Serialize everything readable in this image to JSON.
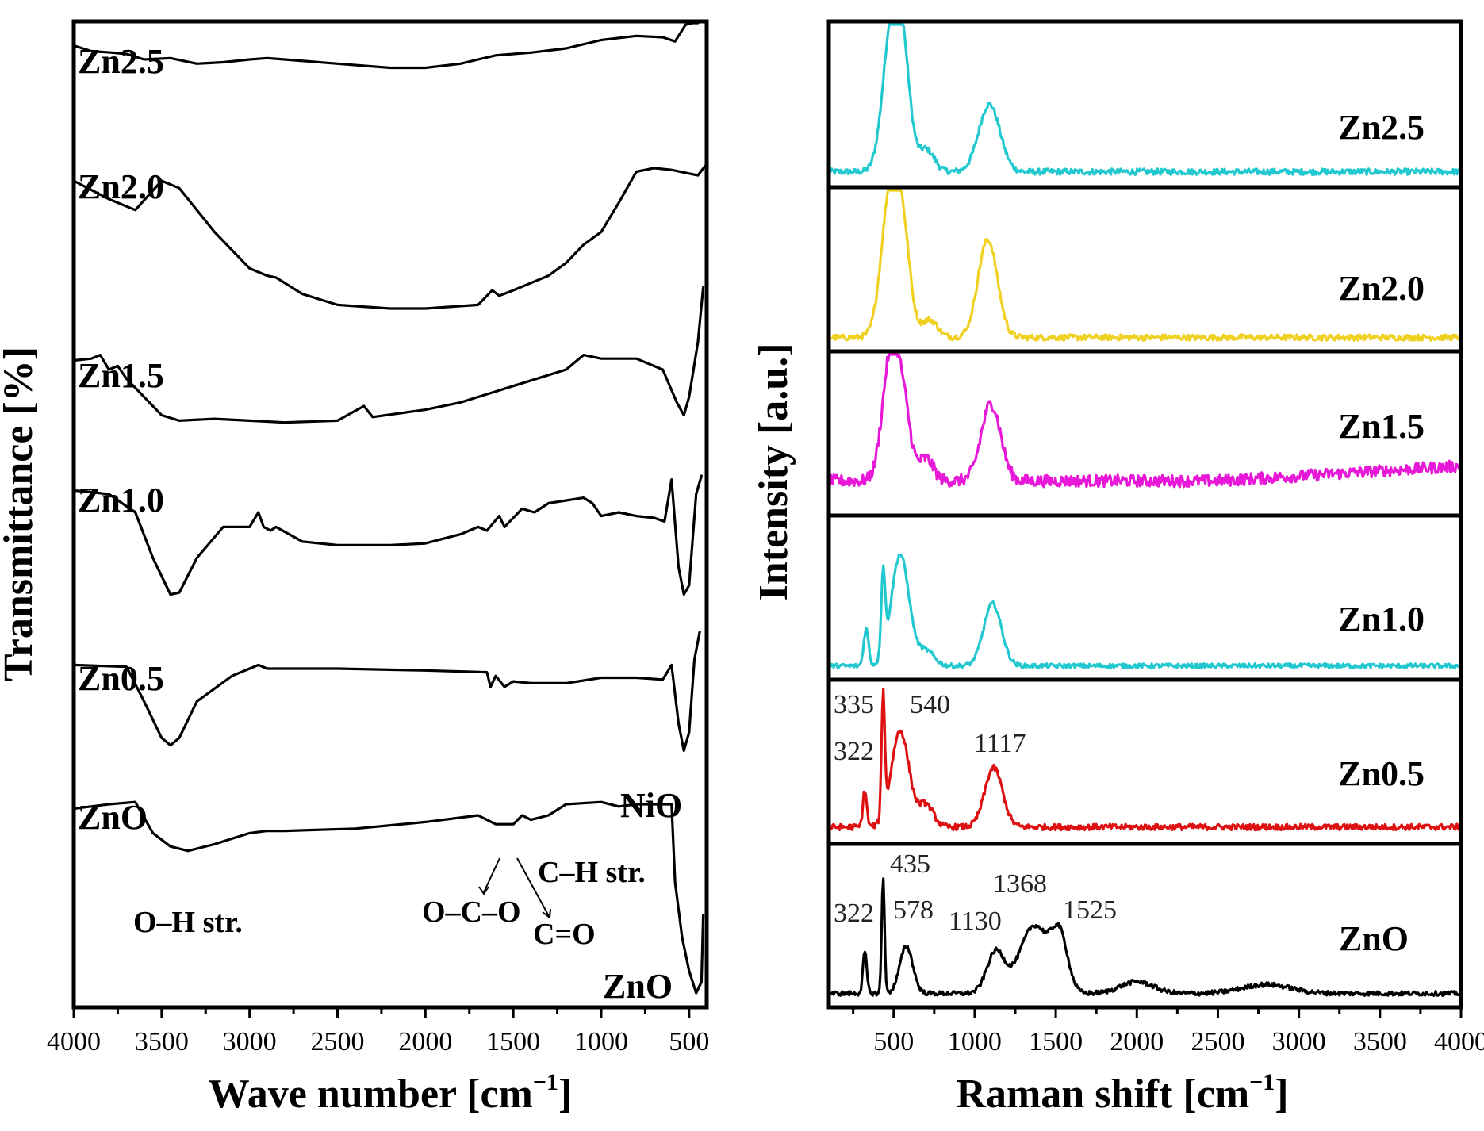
{
  "chart_data": [
    {
      "type": "line",
      "panel": "ftir",
      "xlabel": "Wave number [cm",
      "xlabel_sup": "−1",
      "xlabel_close": "]",
      "ylabel": "Transmittance [%]",
      "xlim": [
        4000,
        400
      ],
      "x_ticks": [
        4000,
        3500,
        3000,
        2500,
        2000,
        1500,
        1000,
        500
      ],
      "grid": false,
      "series": [
        {
          "name": "Zn2.5",
          "color": "#000000",
          "x": [
            4000,
            3900,
            3780,
            3700,
            3600,
            3450,
            3300,
            3150,
            3000,
            2900,
            2800,
            2500,
            2200,
            2000,
            1800,
            1700,
            1600,
            1500,
            1400,
            1200,
            1000,
            800,
            650,
            580,
            520,
            480,
            450
          ],
          "y": [
            0.9,
            0.86,
            0.85,
            0.84,
            0.8,
            0.81,
            0.77,
            0.78,
            0.8,
            0.81,
            0.8,
            0.77,
            0.74,
            0.74,
            0.77,
            0.8,
            0.83,
            0.84,
            0.85,
            0.88,
            0.94,
            0.97,
            0.96,
            0.93,
            1.05,
            1.25,
            1.45
          ]
        },
        {
          "name": "Zn2.0",
          "color": "#000000",
          "x": [
            4000,
            3800,
            3650,
            3500,
            3400,
            3200,
            3000,
            2900,
            2850,
            2700,
            2500,
            2200,
            2000,
            1700,
            1620,
            1580,
            1500,
            1400,
            1300,
            1200,
            1100,
            1000,
            900,
            800,
            700,
            600,
            500,
            450,
            410
          ],
          "y": [
            0.9,
            0.8,
            0.74,
            0.9,
            0.86,
            0.62,
            0.42,
            0.38,
            0.37,
            0.28,
            0.22,
            0.2,
            0.2,
            0.22,
            0.3,
            0.27,
            0.3,
            0.34,
            0.38,
            0.45,
            0.55,
            0.62,
            0.78,
            0.95,
            0.97,
            0.96,
            0.94,
            0.93,
            0.98
          ]
        },
        {
          "name": "Zn1.5",
          "color": "#000000",
          "x": [
            4000,
            3900,
            3850,
            3800,
            3750,
            3700,
            3600,
            3500,
            3400,
            3200,
            3000,
            2800,
            2500,
            2350,
            2300,
            2000,
            1800,
            1600,
            1400,
            1200,
            1100,
            1000,
            800,
            650,
            570,
            530,
            500,
            450,
            420
          ],
          "y": [
            0.85,
            0.86,
            0.88,
            0.8,
            0.82,
            0.75,
            0.65,
            0.55,
            0.52,
            0.53,
            0.52,
            0.51,
            0.52,
            0.6,
            0.54,
            0.58,
            0.62,
            0.68,
            0.74,
            0.8,
            0.88,
            0.86,
            0.86,
            0.8,
            0.62,
            0.55,
            0.65,
            0.95,
            1.25
          ]
        },
        {
          "name": "Zn1.0",
          "color": "#000000",
          "x": [
            4000,
            3800,
            3650,
            3550,
            3450,
            3400,
            3300,
            3150,
            3000,
            2950,
            2920,
            2880,
            2850,
            2700,
            2500,
            2200,
            2000,
            1800,
            1700,
            1650,
            1580,
            1550,
            1450,
            1380,
            1300,
            1100,
            1050,
            1000,
            900,
            800,
            700,
            640,
            600,
            560,
            530,
            500,
            460,
            430
          ],
          "y": [
            0.92,
            0.9,
            0.8,
            0.55,
            0.35,
            0.36,
            0.55,
            0.72,
            0.72,
            0.8,
            0.72,
            0.7,
            0.72,
            0.64,
            0.62,
            0.62,
            0.63,
            0.68,
            0.72,
            0.7,
            0.78,
            0.72,
            0.82,
            0.8,
            0.85,
            0.88,
            0.85,
            0.78,
            0.8,
            0.78,
            0.77,
            0.75,
            0.98,
            0.5,
            0.35,
            0.4,
            0.9,
            1.0
          ]
        },
        {
          "name": "Zn0.5",
          "color": "#000000",
          "x": [
            4000,
            3700,
            3600,
            3500,
            3450,
            3400,
            3300,
            3100,
            3000,
            2950,
            2900,
            2850,
            2500,
            2000,
            1650,
            1630,
            1600,
            1550,
            1500,
            1400,
            1200,
            1000,
            800,
            650,
            600,
            560,
            530,
            500,
            470,
            440
          ],
          "y": [
            0.92,
            0.91,
            0.72,
            0.52,
            0.48,
            0.52,
            0.72,
            0.86,
            0.9,
            0.92,
            0.9,
            0.9,
            0.9,
            0.89,
            0.88,
            0.8,
            0.86,
            0.8,
            0.83,
            0.82,
            0.82,
            0.85,
            0.85,
            0.84,
            0.92,
            0.6,
            0.45,
            0.55,
            0.95,
            1.1
          ]
        },
        {
          "name": "ZnO",
          "color": "#000000",
          "x": [
            4000,
            3800,
            3650,
            3550,
            3450,
            3350,
            3200,
            3000,
            2900,
            2800,
            2400,
            2000,
            1700,
            1600,
            1500,
            1450,
            1400,
            1300,
            1200,
            1000,
            900,
            800,
            600,
            580,
            540,
            500,
            460,
            430,
            420
          ],
          "y": [
            0.93,
            0.95,
            0.96,
            0.82,
            0.76,
            0.74,
            0.77,
            0.82,
            0.83,
            0.83,
            0.84,
            0.87,
            0.9,
            0.86,
            0.86,
            0.9,
            0.88,
            0.9,
            0.95,
            0.96,
            0.94,
            0.95,
            0.95,
            0.6,
            0.35,
            0.2,
            0.1,
            0.15,
            0.45
          ]
        }
      ],
      "annotations": [
        {
          "text": "NiO"
        },
        {
          "text": "ZnO"
        },
        {
          "text": "O–H str."
        },
        {
          "text": "O–C–O"
        },
        {
          "text": "C–H str."
        },
        {
          "text": "C=O"
        }
      ]
    },
    {
      "type": "line",
      "panel": "raman",
      "xlabel": "Raman shift [cm",
      "xlabel_sup": "−1",
      "xlabel_close": "]",
      "ylabel": "Intensity [a.u.]",
      "xlim": [
        100,
        4000
      ],
      "x_ticks": [
        500,
        1000,
        1500,
        2000,
        2500,
        3000,
        3500,
        4000
      ],
      "grid": false,
      "series": [
        {
          "name": "Zn2.5",
          "color": "#22c8cf",
          "peaks": [
            [
              490,
              0.98,
              55
            ],
            [
              560,
              0.55,
              45
            ],
            [
              700,
              0.15,
              50
            ],
            [
              1090,
              0.45,
              65
            ]
          ],
          "baseline": 0.05,
          "noise": 0.02
        },
        {
          "name": "Zn2.0",
          "color": "#f0d020",
          "peaks": [
            [
              480,
              0.98,
              55
            ],
            [
              560,
              0.55,
              45
            ],
            [
              720,
              0.12,
              50
            ],
            [
              1080,
              0.66,
              60
            ]
          ],
          "baseline": 0.04,
          "noise": 0.02
        },
        {
          "name": "Zn1.5",
          "color": "#e818d8",
          "peaks": [
            [
              480,
              0.82,
              50
            ],
            [
              560,
              0.45,
              45
            ],
            [
              700,
              0.15,
              45
            ],
            [
              1100,
              0.52,
              60
            ]
          ],
          "baseline": 0.18,
          "noise": 0.04
        },
        {
          "name": "Zn1.0",
          "color": "#22c8cf",
          "peaks": [
            [
              330,
              0.25,
              15
            ],
            [
              435,
              0.55,
              12
            ],
            [
              540,
              0.75,
              55
            ],
            [
              700,
              0.1,
              50
            ],
            [
              1110,
              0.42,
              55
            ]
          ],
          "baseline": 0.04,
          "noise": 0.015
        },
        {
          "name": "Zn0.5",
          "color": "#dd1111",
          "peaks": [
            [
              322,
              0.25,
              12
            ],
            [
              435,
              0.82,
              10
            ],
            [
              540,
              0.65,
              55
            ],
            [
              700,
              0.15,
              45
            ],
            [
              1117,
              0.4,
              55
            ]
          ],
          "baseline": 0.06,
          "noise": 0.02,
          "labels": [
            {
              "text": "335",
              "x": 335
            },
            {
              "text": "540",
              "x": 540
            },
            {
              "text": "322",
              "x": 322
            },
            {
              "text": "1117",
              "x": 1117
            }
          ]
        },
        {
          "name": "ZnO",
          "color": "#000000",
          "peaks": [
            [
              322,
              0.28,
              12
            ],
            [
              435,
              0.78,
              9
            ],
            [
              578,
              0.32,
              40
            ],
            [
              1130,
              0.28,
              55
            ],
            [
              1368,
              0.46,
              90
            ],
            [
              1525,
              0.35,
              50
            ],
            [
              2000,
              0.08,
              100
            ],
            [
              2800,
              0.06,
              150
            ]
          ],
          "baseline": 0.04,
          "noise": 0.015,
          "labels": [
            {
              "text": "435",
              "x": 435
            },
            {
              "text": "1368",
              "x": 1368
            },
            {
              "text": "322",
              "x": 322
            },
            {
              "text": "578",
              "x": 578
            },
            {
              "text": "1130",
              "x": 1130
            },
            {
              "text": "1525",
              "x": 1525
            }
          ]
        }
      ]
    }
  ]
}
